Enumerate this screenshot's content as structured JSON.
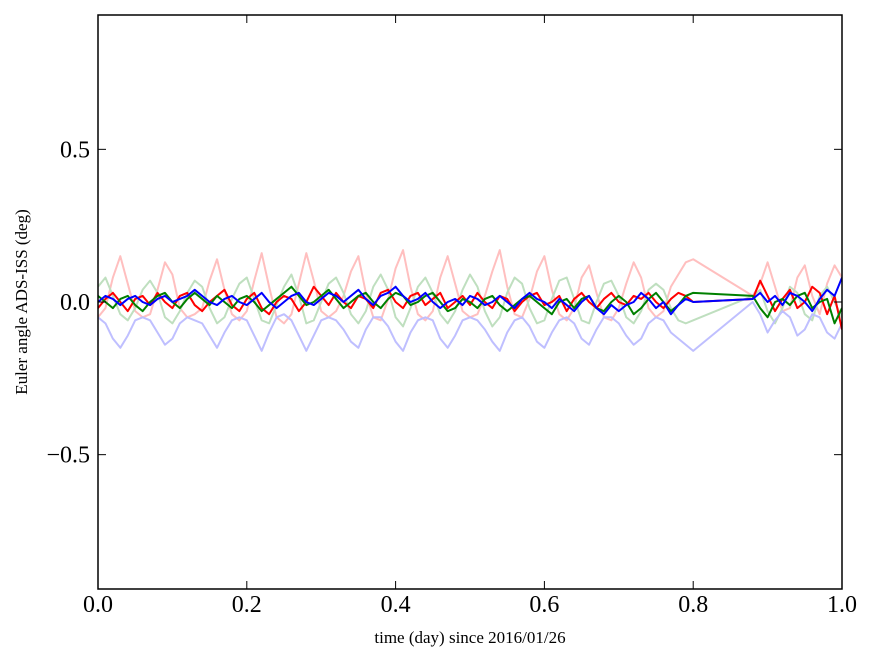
{
  "chart_data": {
    "type": "line",
    "xlabel": "time (day) since 2016/01/26",
    "ylabel": "Euler angle ADS-ISS (deg)",
    "xlim": [
      0,
      1
    ],
    "ylim": [
      -0.94,
      0.94
    ],
    "xticks": [
      {
        "value": 0,
        "label": "0.0"
      },
      0.2,
      0.4,
      0.6,
      0.8,
      {
        "value": 1,
        "label": "1.0"
      }
    ],
    "yticks": [
      {
        "value": -0.5,
        "label": "−0.5"
      },
      {
        "value": 0,
        "label": "0.0"
      },
      0.5
    ],
    "grid": false,
    "x": [
      0.0,
      0.01,
      0.02,
      0.03,
      0.04,
      0.05,
      0.06,
      0.07,
      0.08,
      0.09,
      0.1,
      0.11,
      0.12,
      0.13,
      0.14,
      0.15,
      0.16,
      0.17,
      0.18,
      0.19,
      0.2,
      0.21,
      0.22,
      0.23,
      0.24,
      0.25,
      0.26,
      0.27,
      0.28,
      0.29,
      0.3,
      0.31,
      0.32,
      0.33,
      0.34,
      0.35,
      0.36,
      0.37,
      0.38,
      0.39,
      0.4,
      0.41,
      0.42,
      0.43,
      0.44,
      0.45,
      0.46,
      0.47,
      0.48,
      0.49,
      0.5,
      0.51,
      0.52,
      0.53,
      0.54,
      0.55,
      0.56,
      0.57,
      0.58,
      0.59,
      0.6,
      0.61,
      0.62,
      0.63,
      0.64,
      0.65,
      0.66,
      0.67,
      0.68,
      0.69,
      0.7,
      0.71,
      0.72,
      0.73,
      0.74,
      0.75,
      0.76,
      0.77,
      0.78,
      0.79,
      0.8,
      0.88,
      0.89,
      0.9,
      0.91,
      0.92,
      0.93,
      0.94,
      0.95,
      0.96,
      0.97,
      0.98,
      0.99,
      1.0
    ],
    "series": [
      {
        "color": "#ffbfbf",
        "values": [
          -0.05,
          -0.02,
          0.08,
          0.15,
          0.06,
          -0.03,
          -0.05,
          -0.04,
          0.04,
          0.13,
          0.09,
          -0.02,
          -0.05,
          -0.04,
          -0.02,
          0.07,
          0.14,
          0.04,
          -0.04,
          -0.06,
          -0.03,
          0.07,
          0.16,
          0.05,
          -0.05,
          -0.07,
          -0.04,
          0.06,
          0.16,
          0.07,
          -0.03,
          -0.05,
          -0.03,
          0.02,
          0.1,
          0.15,
          0.03,
          -0.05,
          -0.06,
          0.01,
          0.11,
          0.17,
          0.05,
          -0.04,
          -0.06,
          -0.03,
          0.08,
          0.15,
          0.06,
          -0.03,
          -0.05,
          -0.04,
          0.02,
          0.1,
          0.17,
          0.05,
          -0.04,
          -0.05,
          0.01,
          0.1,
          0.15,
          0.04,
          -0.04,
          -0.06,
          -0.02,
          0.08,
          0.12,
          0.03,
          -0.05,
          -0.06,
          -0.02,
          0.06,
          0.13,
          0.08,
          -0.02,
          -0.05,
          -0.03,
          0.05,
          0.09,
          0.13,
          0.14,
          0.02,
          0.06,
          0.13,
          0.05,
          -0.03,
          -0.02,
          0.08,
          0.12,
          0.02,
          -0.04,
          0.06,
          0.12,
          0.08
        ]
      },
      {
        "color": "#bfdfbf",
        "values": [
          0.05,
          0.08,
          0.02,
          -0.04,
          -0.06,
          -0.02,
          0.04,
          0.07,
          0.03,
          -0.05,
          -0.07,
          -0.03,
          0.03,
          0.07,
          0.05,
          -0.02,
          -0.07,
          -0.05,
          0.01,
          0.06,
          0.08,
          0.01,
          -0.06,
          -0.07,
          -0.01,
          0.05,
          0.09,
          0.02,
          -0.07,
          -0.06,
          0.0,
          0.06,
          0.08,
          0.03,
          -0.04,
          -0.07,
          -0.03,
          0.05,
          0.09,
          0.04,
          -0.05,
          -0.08,
          -0.02,
          0.05,
          0.08,
          0.03,
          -0.04,
          -0.07,
          -0.03,
          0.04,
          0.09,
          0.05,
          -0.03,
          -0.08,
          -0.05,
          0.03,
          0.08,
          0.06,
          -0.02,
          -0.07,
          -0.06,
          0.01,
          0.07,
          0.08,
          0.01,
          -0.06,
          -0.07,
          0.0,
          0.06,
          0.07,
          0.02,
          -0.05,
          -0.07,
          -0.03,
          0.04,
          0.06,
          0.04,
          -0.02,
          -0.06,
          -0.07,
          -0.06,
          0.02,
          0.04,
          -0.03,
          -0.07,
          -0.02,
          0.05,
          0.03,
          -0.04,
          -0.06,
          0.02,
          0.05,
          0.0,
          -0.05
        ]
      },
      {
        "color": "#bfbfff",
        "values": [
          -0.05,
          -0.07,
          -0.12,
          -0.15,
          -0.11,
          -0.06,
          -0.05,
          -0.06,
          -0.1,
          -0.14,
          -0.12,
          -0.07,
          -0.05,
          -0.06,
          -0.07,
          -0.11,
          -0.15,
          -0.1,
          -0.06,
          -0.05,
          -0.06,
          -0.11,
          -0.16,
          -0.1,
          -0.05,
          -0.04,
          -0.06,
          -0.11,
          -0.16,
          -0.11,
          -0.06,
          -0.05,
          -0.06,
          -0.09,
          -0.13,
          -0.15,
          -0.09,
          -0.05,
          -0.05,
          -0.08,
          -0.13,
          -0.16,
          -0.1,
          -0.06,
          -0.05,
          -0.06,
          -0.12,
          -0.15,
          -0.11,
          -0.06,
          -0.05,
          -0.06,
          -0.09,
          -0.13,
          -0.16,
          -0.1,
          -0.06,
          -0.05,
          -0.08,
          -0.13,
          -0.15,
          -0.1,
          -0.06,
          -0.05,
          -0.07,
          -0.12,
          -0.14,
          -0.09,
          -0.05,
          -0.05,
          -0.07,
          -0.11,
          -0.14,
          -0.12,
          -0.07,
          -0.05,
          -0.06,
          -0.1,
          -0.12,
          -0.14,
          -0.16,
          0.0,
          -0.04,
          -0.1,
          -0.06,
          -0.03,
          -0.05,
          -0.11,
          -0.09,
          -0.04,
          -0.05,
          -0.1,
          -0.12,
          -0.07
        ]
      },
      {
        "color": "#ff0000",
        "values": [
          -0.02,
          0.01,
          0.03,
          0.0,
          -0.03,
          0.01,
          0.02,
          -0.01,
          0.03,
          0.0,
          -0.02,
          0.02,
          0.03,
          -0.01,
          -0.03,
          0.0,
          0.02,
          0.04,
          -0.01,
          -0.03,
          0.01,
          0.03,
          -0.02,
          -0.04,
          0.0,
          0.02,
          0.01,
          -0.03,
          0.0,
          0.05,
          0.02,
          -0.01,
          0.03,
          0.0,
          -0.02,
          0.02,
          0.01,
          -0.02,
          0.03,
          0.04,
          0.0,
          -0.02,
          0.02,
          0.03,
          -0.01,
          0.01,
          0.03,
          -0.02,
          0.0,
          0.02,
          -0.01,
          0.03,
          0.0,
          -0.02,
          0.02,
          0.01,
          -0.03,
          0.0,
          0.02,
          0.03,
          -0.01,
          0.0,
          0.02,
          -0.03,
          0.01,
          0.03,
          0.0,
          -0.02,
          0.01,
          0.03,
          0.0,
          -0.01,
          0.02,
          0.01,
          0.03,
          0.0,
          -0.02,
          0.01,
          0.03,
          0.02,
          0.0,
          0.01,
          0.07,
          0.02,
          -0.03,
          0.01,
          0.04,
          -0.02,
          0.0,
          0.05,
          0.03,
          -0.04,
          0.02,
          -0.09
        ]
      },
      {
        "color": "#008000",
        "values": [
          0.02,
          0.0,
          -0.02,
          0.01,
          0.02,
          -0.01,
          -0.03,
          0.0,
          0.02,
          0.03,
          0.0,
          -0.02,
          0.01,
          0.03,
          0.01,
          -0.01,
          0.02,
          0.0,
          -0.02,
          0.01,
          0.02,
          0.0,
          -0.03,
          -0.01,
          0.01,
          0.03,
          0.05,
          0.02,
          -0.01,
          0.0,
          0.02,
          0.04,
          0.01,
          -0.02,
          0.0,
          0.02,
          0.03,
          0.0,
          -0.02,
          0.01,
          0.03,
          0.02,
          -0.01,
          0.0,
          0.02,
          0.03,
          0.0,
          -0.03,
          -0.02,
          0.01,
          0.0,
          -0.02,
          0.01,
          0.02,
          -0.01,
          -0.03,
          -0.01,
          0.01,
          0.02,
          0.0,
          -0.02,
          -0.04,
          0.0,
          0.01,
          -0.02,
          0.01,
          0.02,
          -0.02,
          -0.03,
          0.0,
          0.02,
          0.0,
          -0.04,
          -0.02,
          0.01,
          0.03,
          0.0,
          -0.03,
          -0.01,
          0.02,
          0.03,
          0.02,
          -0.02,
          -0.05,
          0.0,
          0.01,
          -0.01,
          0.02,
          0.03,
          -0.02,
          0.0,
          0.01,
          -0.07,
          -0.02
        ]
      },
      {
        "color": "#0000ff",
        "values": [
          0.0,
          0.02,
          0.01,
          -0.01,
          0.01,
          0.02,
          0.0,
          -0.01,
          0.01,
          0.02,
          0.0,
          0.01,
          0.02,
          0.04,
          0.02,
          0.0,
          -0.01,
          0.01,
          0.02,
          0.0,
          -0.01,
          0.01,
          0.03,
          0.0,
          -0.02,
          0.0,
          0.02,
          0.03,
          0.0,
          -0.01,
          0.01,
          0.03,
          0.02,
          0.0,
          0.02,
          0.04,
          0.01,
          -0.01,
          0.02,
          0.03,
          0.05,
          0.02,
          0.0,
          0.01,
          0.03,
          0.0,
          -0.02,
          0.0,
          0.01,
          -0.01,
          0.02,
          0.01,
          -0.01,
          0.0,
          0.02,
          0.0,
          -0.02,
          0.01,
          0.03,
          0.01,
          0.0,
          -0.02,
          0.01,
          -0.01,
          -0.03,
          0.0,
          0.02,
          -0.02,
          -0.04,
          -0.01,
          -0.03,
          -0.01,
          0.0,
          0.03,
          0.01,
          -0.02,
          0.0,
          -0.04,
          -0.01,
          0.01,
          0.0,
          0.01,
          0.03,
          0.0,
          0.02,
          -0.01,
          0.03,
          0.02,
          0.0,
          -0.03,
          0.01,
          0.04,
          0.02,
          0.08
        ]
      }
    ]
  }
}
